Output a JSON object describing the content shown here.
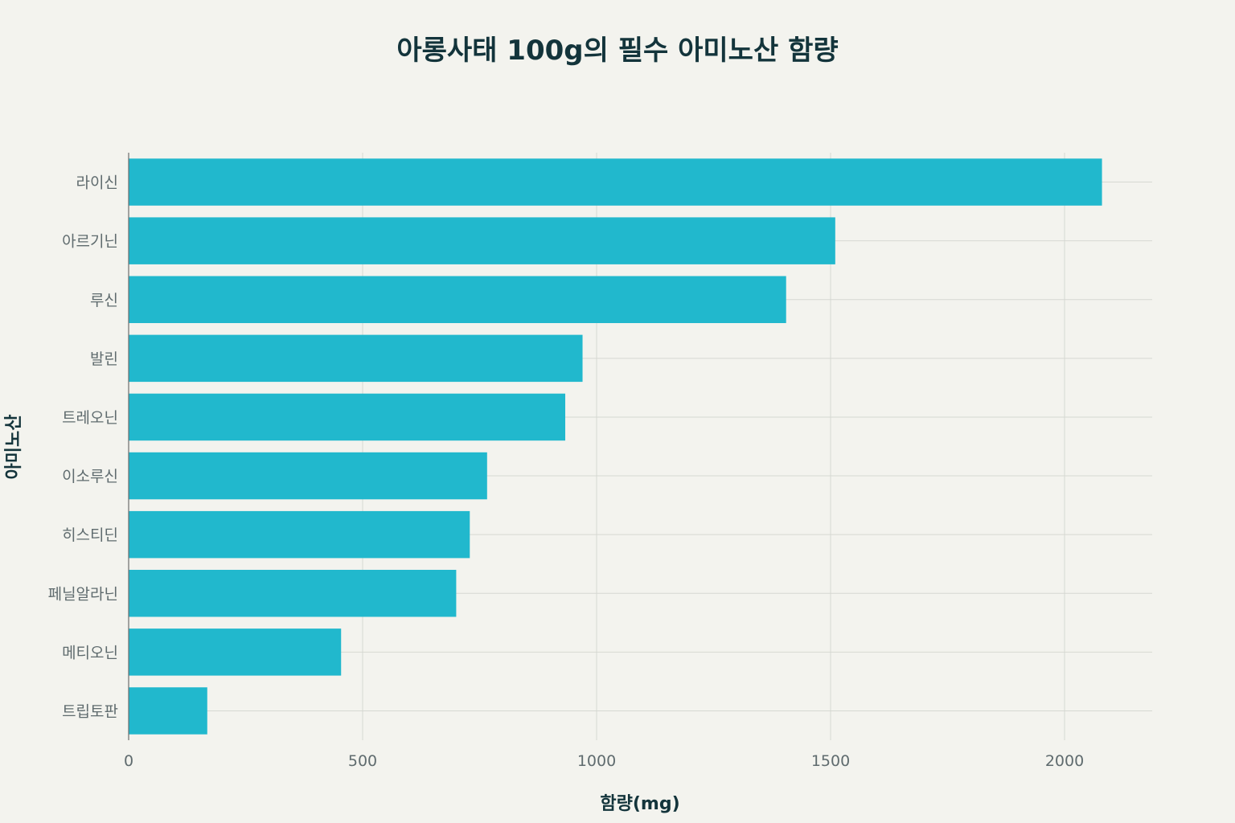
{
  "chart_data": {
    "type": "bar",
    "orientation": "horizontal",
    "title": "아롱사태 100g의 필수 아미노산 함량",
    "xlabel": "함량(mg)",
    "ylabel": "아미노산",
    "categories": [
      "라이신",
      "아르기닌",
      "루신",
      "발린",
      "트레오닌",
      "이소루신",
      "히스티딘",
      "페닐알라닌",
      "메티오닌",
      "트립토판"
    ],
    "values": [
      2080,
      1510,
      1405,
      970,
      933,
      766,
      729,
      700,
      454,
      168
    ],
    "xlim": [
      0,
      2200
    ],
    "xticks": [
      0,
      500,
      1000,
      1500,
      2000
    ],
    "grid": true,
    "bar_color": "#21b8cd"
  }
}
